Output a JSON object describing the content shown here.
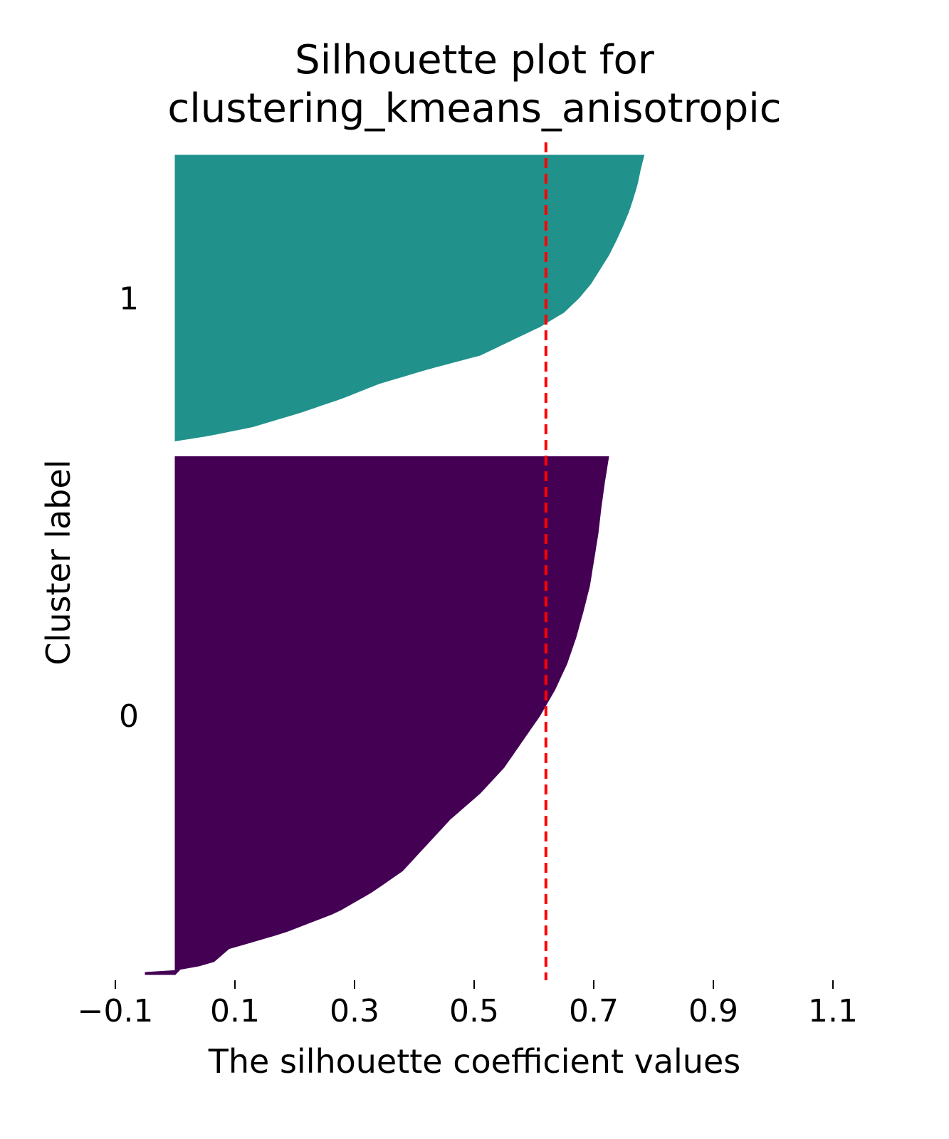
{
  "chart_data": {
    "type": "silhouette",
    "title_lines": [
      "Silhouette plot for",
      "clustering_kmeans_anisotropic"
    ],
    "xlabel": "The silhouette coefficient values",
    "ylabel": "Cluster label",
    "xlim": [
      -0.15,
      1.15
    ],
    "xticks": [
      -0.1,
      0.1,
      0.3,
      0.5,
      0.7,
      0.9,
      1.1
    ],
    "xtick_labels": [
      "−0.1",
      "0.1",
      "0.3",
      "0.5",
      "0.7",
      "0.9",
      "1.1"
    ],
    "average_silhouette": 0.62,
    "average_line_color": "#ff0000",
    "clusters": [
      {
        "label": "0",
        "color": "#440154",
        "size": 290,
        "profile": [
          [
            0,
            0.0
          ],
          [
            0.01,
            0.0
          ],
          [
            0.02,
            0.06
          ],
          [
            0.05,
            0.09
          ],
          [
            0.08,
            0.18
          ],
          [
            0.12,
            0.27
          ],
          [
            0.16,
            0.33
          ],
          [
            0.2,
            0.38
          ],
          [
            0.25,
            0.42
          ],
          [
            0.3,
            0.46
          ],
          [
            0.35,
            0.51
          ],
          [
            0.4,
            0.55
          ],
          [
            0.45,
            0.58
          ],
          [
            0.5,
            0.61
          ],
          [
            0.55,
            0.635
          ],
          [
            0.6,
            0.655
          ],
          [
            0.65,
            0.67
          ],
          [
            0.7,
            0.682
          ],
          [
            0.75,
            0.693
          ],
          [
            0.8,
            0.7
          ],
          [
            0.85,
            0.707
          ],
          [
            0.9,
            0.712
          ],
          [
            0.95,
            0.718
          ],
          [
            1.0,
            0.725
          ]
        ],
        "tail_min": -0.05
      },
      {
        "label": "1",
        "color": "#21918c",
        "size": 160,
        "profile": [
          [
            0,
            0.0
          ],
          [
            0.02,
            0.06
          ],
          [
            0.05,
            0.13
          ],
          [
            0.1,
            0.21
          ],
          [
            0.15,
            0.28
          ],
          [
            0.2,
            0.34
          ],
          [
            0.25,
            0.42
          ],
          [
            0.3,
            0.51
          ],
          [
            0.35,
            0.56
          ],
          [
            0.4,
            0.61
          ],
          [
            0.45,
            0.65
          ],
          [
            0.5,
            0.675
          ],
          [
            0.55,
            0.695
          ],
          [
            0.6,
            0.71
          ],
          [
            0.65,
            0.725
          ],
          [
            0.7,
            0.737
          ],
          [
            0.75,
            0.748
          ],
          [
            0.8,
            0.758
          ],
          [
            0.85,
            0.766
          ],
          [
            0.9,
            0.773
          ],
          [
            0.95,
            0.778
          ],
          [
            1.0,
            0.784
          ]
        ]
      }
    ]
  }
}
